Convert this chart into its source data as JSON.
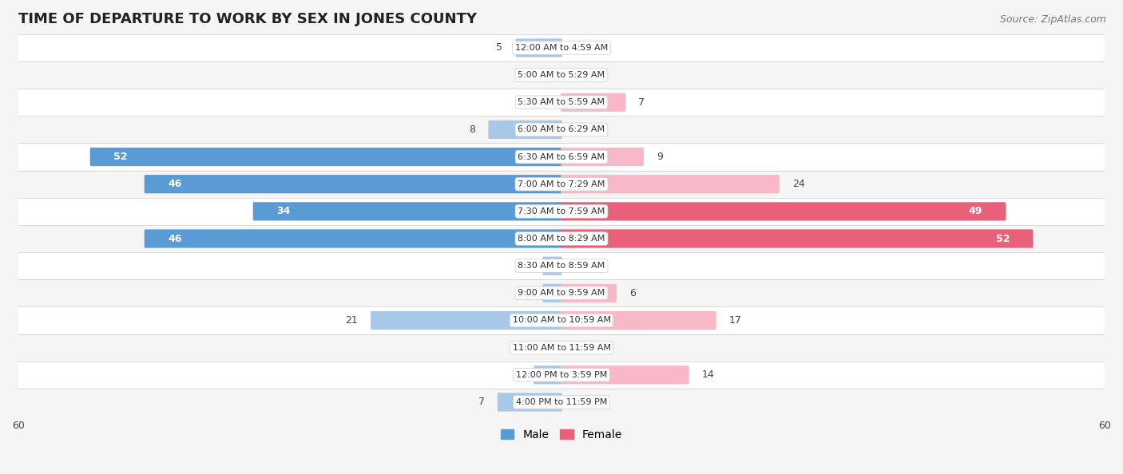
{
  "title": "TIME OF DEPARTURE TO WORK BY SEX IN JONES COUNTY",
  "source": "Source: ZipAtlas.com",
  "categories": [
    "12:00 AM to 4:59 AM",
    "5:00 AM to 5:29 AM",
    "5:30 AM to 5:59 AM",
    "6:00 AM to 6:29 AM",
    "6:30 AM to 6:59 AM",
    "7:00 AM to 7:29 AM",
    "7:30 AM to 7:59 AM",
    "8:00 AM to 8:29 AM",
    "8:30 AM to 8:59 AM",
    "9:00 AM to 9:59 AM",
    "10:00 AM to 10:59 AM",
    "11:00 AM to 11:59 AM",
    "12:00 PM to 3:59 PM",
    "4:00 PM to 11:59 PM"
  ],
  "male_values": [
    5,
    0,
    0,
    8,
    52,
    46,
    34,
    46,
    2,
    2,
    21,
    0,
    3,
    7
  ],
  "female_values": [
    0,
    0,
    7,
    0,
    9,
    24,
    49,
    52,
    0,
    6,
    17,
    0,
    14,
    0
  ],
  "male_color_light": "#a8c8e8",
  "male_color_dark": "#5b9bd5",
  "female_color_light": "#f9b8c8",
  "female_color_dark": "#e8607a",
  "male_label": "Male",
  "female_label": "Female",
  "xlim": 60,
  "row_bg_odd": "#f5f5f5",
  "row_bg_even": "#ffffff",
  "title_fontsize": 13,
  "label_fontsize": 9,
  "axis_fontsize": 9,
  "source_fontsize": 9,
  "value_threshold": 30
}
